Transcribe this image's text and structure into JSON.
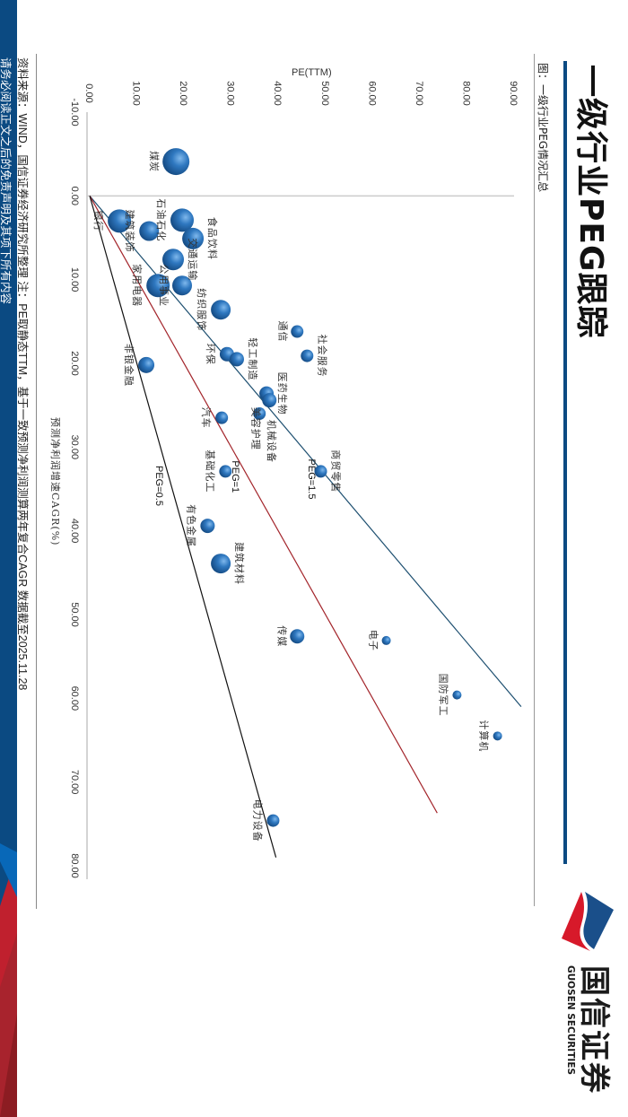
{
  "header": {
    "title": "一级行业PEG跟踪",
    "subtitle": "图：一级行业PEG情况汇总"
  },
  "logo": {
    "cn": "国信证券",
    "en": "GUOSEN SECURITIES"
  },
  "footer": {
    "note": "资料来源：WIND，国信证券经济研究所整理   注：PE取静态TTM，基于一致预测净利润测算两年复合CAGR   数据截至2025.11.28",
    "disclaimer": "请务必阅读正文之后的免责声明及其项下所有内容"
  },
  "colors": {
    "brand_blue": "#0b4a82",
    "bubble": "#2a6fb5",
    "peg_1_5": "#1d4f70",
    "peg_1": "#a3252b",
    "peg_0_5": "#111111"
  },
  "chart_data": {
    "type": "scatter",
    "title": "一级行业PEG情况汇总",
    "xlabel": "预测净利润增速CAGR(%)",
    "ylabel": "PE(TTM)",
    "xlim": [
      -10,
      80
    ],
    "ylim": [
      0,
      90
    ],
    "xticks": [
      "-10.00",
      "0.00",
      "10.00",
      "20.00",
      "30.00",
      "40.00",
      "50.00",
      "60.00",
      "70.00",
      "80.00"
    ],
    "yticks": [
      "0.00",
      "10.00",
      "20.00",
      "30.00",
      "40.00",
      "50.00",
      "60.00",
      "70.00",
      "80.00",
      "90.00"
    ],
    "grid": false,
    "peg_lines": [
      {
        "name": "PEG=1.5",
        "peg": 1.5,
        "x_end": 61,
        "label_at": 32.7
      },
      {
        "name": "PEG=1",
        "peg": 1,
        "x_end": 73.7,
        "label_at": 32.9
      },
      {
        "name": "PEG=0.5",
        "peg": 0.5,
        "x_end": 79,
        "label_at": 33.5
      }
    ],
    "points": [
      {
        "name": "煤炭",
        "cagr": -4.1,
        "pe": 18.3,
        "size": 15
      },
      {
        "name": "银行",
        "cagr": 3.0,
        "pe": 6.3,
        "size": 13
      },
      {
        "name": "建筑装饰",
        "cagr": 4.2,
        "pe": 12.6,
        "size": 11
      },
      {
        "name": "石油石化",
        "cagr": 2.9,
        "pe": 19.6,
        "size": 13
      },
      {
        "name": "食品饮料",
        "cagr": 5.1,
        "pe": 21.9,
        "size": 12
      },
      {
        "name": "交通运输",
        "cagr": 7.6,
        "pe": 17.7,
        "size": 12
      },
      {
        "name": "家用电器",
        "cagr": 10.7,
        "pe": 14.5,
        "size": 13
      },
      {
        "name": "公用事业",
        "cagr": 10.7,
        "pe": 19.6,
        "size": 11
      },
      {
        "name": "纺织服饰",
        "cagr": 13.6,
        "pe": 27.8,
        "size": 11
      },
      {
        "name": "环保",
        "cagr": 18.9,
        "pe": 29.1,
        "size": 8
      },
      {
        "name": "轻工制造",
        "cagr": 19.5,
        "pe": 31.2,
        "size": 8
      },
      {
        "name": "通信",
        "cagr": 16.2,
        "pe": 44.0,
        "size": 7
      },
      {
        "name": "社会服务",
        "cagr": 19.1,
        "pe": 46.1,
        "size": 7
      },
      {
        "name": "非银金融",
        "cagr": 20.2,
        "pe": 12.0,
        "size": 9
      },
      {
        "name": "医药生物",
        "cagr": 23.6,
        "pe": 37.5,
        "size": 8
      },
      {
        "name": "美容护理",
        "cagr": 24.4,
        "pe": 38.1,
        "size": 8
      },
      {
        "name": "机械设备",
        "cagr": 26.0,
        "pe": 36.0,
        "size": 7
      },
      {
        "name": "汽车",
        "cagr": 26.5,
        "pe": 28.0,
        "size": 7
      },
      {
        "name": "基础化工",
        "cagr": 32.9,
        "pe": 28.8,
        "size": 7
      },
      {
        "name": "商贸零售",
        "cagr": 32.9,
        "pe": 49.0,
        "size": 7
      },
      {
        "name": "有色金属",
        "cagr": 39.4,
        "pe": 25.0,
        "size": 8
      },
      {
        "name": "建筑材料",
        "cagr": 43.9,
        "pe": 27.8,
        "size": 11
      },
      {
        "name": "传媒",
        "cagr": 52.6,
        "pe": 44.0,
        "size": 8
      },
      {
        "name": "电子",
        "cagr": 53.1,
        "pe": 62.9,
        "size": 5
      },
      {
        "name": "国防军工",
        "cagr": 59.6,
        "pe": 77.9,
        "size": 5
      },
      {
        "name": "计算机",
        "cagr": 64.5,
        "pe": 86.5,
        "size": 5
      },
      {
        "name": "电力设备",
        "cagr": 74.6,
        "pe": 38.9,
        "size": 7
      }
    ]
  }
}
